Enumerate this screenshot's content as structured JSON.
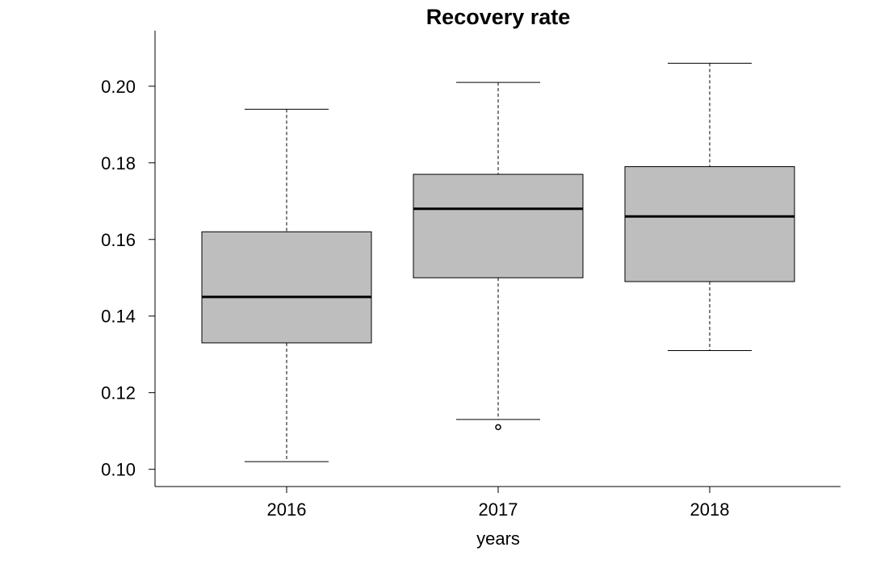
{
  "chart_data": {
    "type": "boxplot",
    "title": "Recovery rate",
    "xlabel": "years",
    "ylabel": "",
    "ylim": [
      0.0955,
      0.2145
    ],
    "yticks": [
      0.1,
      0.12,
      0.14,
      0.16,
      0.18,
      0.2
    ],
    "ytick_labels": [
      "0.10",
      "0.12",
      "0.14",
      "0.16",
      "0.18",
      "0.20"
    ],
    "grid": false,
    "categories": [
      "2016",
      "2017",
      "2018"
    ],
    "boxes": [
      {
        "category": "2016",
        "whisker_low": 0.102,
        "q1": 0.133,
        "median": 0.145,
        "q3": 0.162,
        "whisker_high": 0.194,
        "outliers": []
      },
      {
        "category": "2017",
        "whisker_low": 0.113,
        "q1": 0.15,
        "median": 0.168,
        "q3": 0.177,
        "whisker_high": 0.201,
        "outliers": [
          0.111
        ]
      },
      {
        "category": "2018",
        "whisker_low": 0.131,
        "q1": 0.149,
        "median": 0.166,
        "q3": 0.179,
        "whisker_high": 0.206,
        "outliers": []
      }
    ],
    "box_color": "#bebebe",
    "line_color": "#000000"
  }
}
